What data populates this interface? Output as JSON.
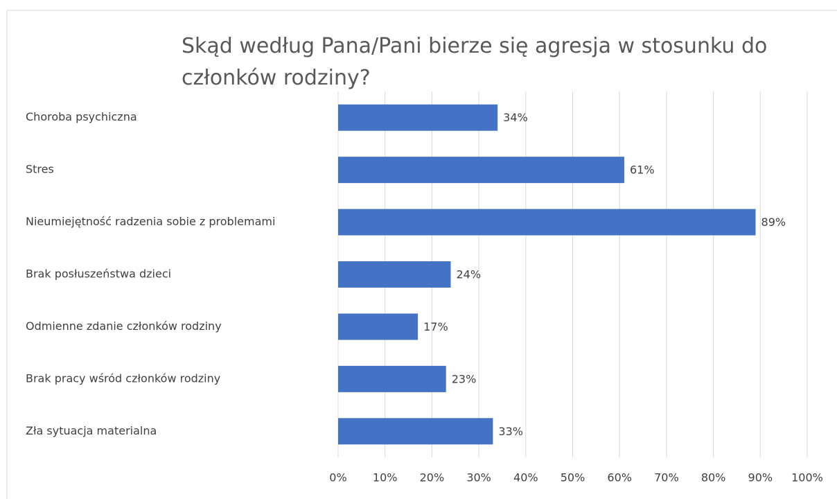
{
  "chart_data": {
    "type": "bar",
    "orientation": "horizontal",
    "title": "Skąd według Pana/Pani bierze się agresja w stosunku do członków rodziny?",
    "categories": [
      "Choroba psychiczna",
      "Stres",
      "Nieumiejętność radzenia sobie z problemami",
      "Brak posłuszeństwa dzieci",
      "Odmienne zdanie członków rodziny",
      "Brak pracy wśród członków rodziny",
      "Zła sytuacja materialna"
    ],
    "values": [
      34,
      61,
      89,
      24,
      17,
      23,
      33
    ],
    "value_labels": [
      "34%",
      "61%",
      "89%",
      "24%",
      "17%",
      "23%",
      "33%"
    ],
    "color": "#4472c4",
    "xlim": [
      0,
      100
    ],
    "xticks": [
      {
        "value": 0,
        "label": "0%"
      },
      {
        "value": 10,
        "label": "10%"
      },
      {
        "value": 20,
        "label": "20%"
      },
      {
        "value": 30,
        "label": "30%"
      },
      {
        "value": 40,
        "label": "40%"
      },
      {
        "value": 50,
        "label": "50%"
      },
      {
        "value": 60,
        "label": "60%"
      },
      {
        "value": 70,
        "label": "70%"
      },
      {
        "value": 80,
        "label": "80%"
      },
      {
        "value": 90,
        "label": "90%"
      },
      {
        "value": 100,
        "label": "100%"
      }
    ],
    "grid": true
  }
}
